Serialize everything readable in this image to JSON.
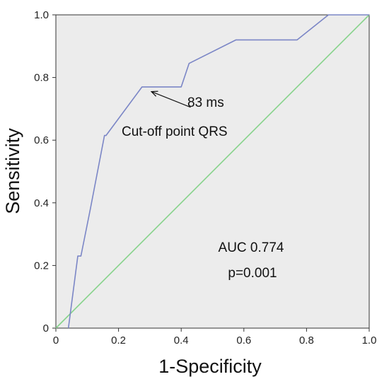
{
  "chart_data": {
    "type": "line",
    "title": "",
    "xlabel": "1-Specificity",
    "ylabel": "Sensitivity",
    "xlim": [
      0,
      1.0
    ],
    "ylim": [
      0,
      1.0
    ],
    "x_ticks": [
      "0",
      "0.2",
      "0.4",
      "0.6",
      "0.8",
      "1.0"
    ],
    "y_ticks": [
      "0",
      "0.2",
      "0.4",
      "0.6",
      "0.8",
      "1.0"
    ],
    "grid": false,
    "background_color": "#ececec",
    "series": [
      {
        "color": "#7b86c6",
        "points": [
          [
            0.04,
            0.0
          ],
          [
            0.07,
            0.23
          ],
          [
            0.08,
            0.23
          ],
          [
            0.11,
            0.38
          ],
          [
            0.155,
            0.615
          ],
          [
            0.16,
            0.615
          ],
          [
            0.275,
            0.77
          ],
          [
            0.4,
            0.77
          ],
          [
            0.425,
            0.845
          ],
          [
            0.575,
            0.92
          ],
          [
            0.77,
            0.92
          ],
          [
            0.87,
            1.0
          ],
          [
            1.0,
            1.0
          ]
        ]
      },
      {
        "color": "#86d38a",
        "points": [
          [
            0.0,
            0.0
          ],
          [
            1.0,
            1.0
          ]
        ]
      }
    ],
    "annotations": {
      "cutoff_value": "83 ms",
      "cutoff_label": "Cut-off point QRS",
      "auc": "AUC 0.774",
      "p_value": "p=0.001"
    },
    "arrow": {
      "from": [
        0.43,
        0.705
      ],
      "to": [
        0.305,
        0.755
      ]
    }
  }
}
